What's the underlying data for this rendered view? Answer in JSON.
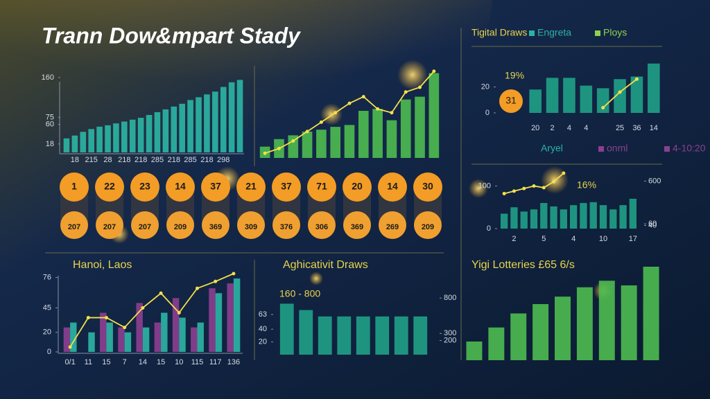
{
  "title": "Trann Dow&тpart Stady",
  "draws": [
    {
      "number": "1",
      "code": "207"
    },
    {
      "number": "22",
      "code": "207"
    },
    {
      "number": "23",
      "code": "207"
    },
    {
      "number": "14",
      "code": "209"
    },
    {
      "number": "37",
      "code": "369"
    },
    {
      "number": "21",
      "code": "309"
    },
    {
      "number": "37",
      "code": "376"
    },
    {
      "number": "71",
      "code": "306"
    },
    {
      "number": "20",
      "code": "369"
    },
    {
      "number": "14",
      "code": "269"
    },
    {
      "number": "30",
      "code": "209"
    }
  ],
  "chart_data": [
    {
      "type": "bar",
      "categories": [
        null,
        "18",
        null,
        "215",
        null,
        "28",
        null,
        "218",
        null,
        "218",
        null,
        "285",
        null,
        "218",
        null,
        "285",
        null,
        "218",
        null,
        "298",
        null,
        null
      ],
      "series": [
        {
          "color": "#2bb3a3",
          "values": [
            30,
            36,
            44,
            50,
            55,
            58,
            62,
            66,
            70,
            74,
            80,
            86,
            92,
            98,
            104,
            112,
            118,
            124,
            130,
            140,
            150,
            155
          ]
        }
      ],
      "ylim": [
        0,
        160
      ],
      "yticks": [
        18,
        60,
        75,
        160
      ]
    },
    {
      "type": "bar",
      "categories": [
        null,
        null,
        null,
        null,
        null,
        null,
        null,
        null,
        null,
        null,
        null,
        null,
        null
      ],
      "series": [
        {
          "color": "#4cb84f",
          "values": [
            12,
            20,
            24,
            28,
            30,
            33,
            35,
            50,
            52,
            40,
            62,
            65,
            90
          ]
        }
      ],
      "line": {
        "color": "#f5e04a",
        "values": [
          5,
          10,
          18,
          28,
          38,
          48,
          58,
          65,
          52,
          48,
          70,
          75,
          92
        ]
      },
      "ylim": [
        0,
        100
      ]
    },
    {
      "type": "bar",
      "categories": [
        "20",
        "2",
        "4",
        "4",
        null,
        "25",
        "36",
        "14"
      ],
      "series": [
        {
          "color": "#1f9e86",
          "values": [
            18,
            27,
            27,
            21,
            19,
            26,
            28,
            38
          ]
        }
      ],
      "line": {
        "color": "#f5e04a",
        "values": [
          null,
          null,
          null,
          null,
          4,
          16,
          26,
          null
        ]
      },
      "legend": [
        {
          "name": "Tigital Draws",
          "color": "#e8d44d"
        },
        {
          "name": "Engreta",
          "color": "#2bb3a3"
        },
        {
          "name": "Ploys",
          "color": "#8fd14f"
        }
      ],
      "annotations": [
        "19%",
        "31"
      ],
      "ylim": [
        0,
        40
      ],
      "yticks": [
        0,
        20
      ]
    },
    {
      "type": "bar",
      "categories": [
        null,
        "2",
        null,
        null,
        "5",
        null,
        null,
        "4",
        null,
        null,
        "10",
        null,
        null,
        "17"
      ],
      "series": [
        {
          "color": "#1f9e86",
          "values": [
            35,
            50,
            40,
            45,
            60,
            52,
            45,
            55,
            60,
            62,
            55,
            45,
            55,
            70
          ]
        }
      ],
      "line": {
        "color": "#f5e04a",
        "values": [
          82,
          88,
          94,
          100,
          96,
          110,
          130,
          null,
          null,
          null,
          null,
          null,
          null,
          null
        ]
      },
      "legend": [
        {
          "name": "Aryel",
          "color": "#2bb3a3"
        },
        {
          "name": "onml",
          "color": "#8b3f8f"
        },
        {
          "name": "4-10:20",
          "color": "#8b3f8f"
        }
      ],
      "annotations": [
        "16%"
      ],
      "ylim": [
        0,
        130
      ],
      "yticks": [
        0,
        100
      ],
      "y2lim": [
        0,
        700
      ],
      "y2ticks": [
        40,
        60,
        600
      ]
    },
    {
      "type": "bar",
      "title": "Hanoi, Laos",
      "categories": [
        "0/1",
        "11",
        "15",
        "7",
        "14",
        "15",
        "10",
        "115",
        "117",
        "136"
      ],
      "series": [
        {
          "color": "#8b3f8f",
          "values": [
            25,
            0,
            40,
            25,
            50,
            30,
            55,
            25,
            65,
            70
          ]
        },
        {
          "color": "#2bb3a3",
          "values": [
            30,
            20,
            30,
            20,
            25,
            40,
            35,
            30,
            60,
            75
          ]
        }
      ],
      "line": {
        "color": "#f5e04a",
        "values": [
          5,
          35,
          35,
          25,
          45,
          60,
          40,
          65,
          72,
          80
        ]
      },
      "ylim": [
        0,
        80
      ],
      "yticks": [
        0,
        20,
        45,
        76
      ]
    },
    {
      "type": "bar",
      "title": "Aghicativit Draws",
      "categories": [
        null,
        null,
        null,
        null,
        null,
        null,
        null,
        null
      ],
      "series": [
        {
          "color": "#1f9e86",
          "values": [
            80,
            70,
            60,
            60,
            60,
            60,
            60,
            60
          ]
        }
      ],
      "annotations": [
        "160 - 800"
      ],
      "ylim": [
        0,
        100
      ],
      "yticks": [
        20,
        40,
        63
      ],
      "y2lim": [
        0,
        900
      ],
      "y2ticks": [
        200,
        300,
        800
      ]
    },
    {
      "type": "bar",
      "title": "Yigi Lotteries £65 6/s",
      "categories": [
        null,
        null,
        null,
        null,
        null,
        null,
        null,
        null,
        null
      ],
      "series": [
        {
          "color": "#4cb84f",
          "values": [
            20,
            35,
            50,
            60,
            68,
            78,
            85,
            80,
            100
          ]
        }
      ],
      "ylim": [
        0,
        100
      ]
    }
  ]
}
